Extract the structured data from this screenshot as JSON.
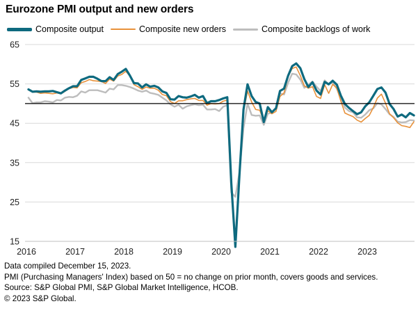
{
  "chart_data": {
    "type": "line",
    "title": "Eurozone PMI output and new orders",
    "xlabel": "",
    "ylabel": "",
    "ylim": [
      15,
      65
    ],
    "yticks": [
      15,
      25,
      35,
      45,
      55,
      65
    ],
    "xlim": [
      2016.0,
      2024.0
    ],
    "xticks": [
      2016,
      2017,
      2018,
      2019,
      2020,
      2021,
      2022,
      2023
    ],
    "reference_line": 50,
    "grid": "horizontal",
    "legend_position": "top",
    "series": [
      {
        "name": "Composite output",
        "color": "#0e6a7f",
        "values": [
          53.6,
          53.0,
          53.1,
          53.0,
          53.1,
          53.1,
          53.2,
          52.9,
          52.6,
          53.3,
          53.9,
          54.4,
          54.4,
          56.0,
          56.4,
          56.8,
          56.8,
          56.3,
          55.7,
          55.7,
          56.7,
          56.0,
          57.5,
          58.1,
          58.8,
          57.1,
          55.2,
          55.1,
          54.1,
          54.9,
          54.3,
          54.5,
          54.1,
          53.1,
          52.7,
          51.1,
          51.0,
          51.9,
          51.6,
          51.5,
          51.8,
          52.2,
          51.5,
          51.9,
          50.1,
          50.6,
          50.6,
          50.9,
          51.3,
          51.6,
          29.7,
          13.6,
          31.9,
          48.5,
          54.9,
          51.9,
          50.4,
          50.0,
          45.3,
          49.1,
          47.8,
          48.8,
          53.2,
          53.8,
          57.1,
          59.5,
          60.2,
          59.0,
          56.2,
          54.2,
          55.4,
          53.3,
          52.3,
          55.5,
          54.9,
          55.8,
          54.8,
          52.0,
          49.9,
          48.9,
          48.1,
          47.3,
          47.8,
          49.3,
          50.3,
          52.0,
          53.7,
          54.1,
          52.8,
          49.9,
          48.6,
          46.7,
          47.2,
          46.5,
          47.6,
          47.0
        ]
      },
      {
        "name": "Composite new orders",
        "color": "#e8913a",
        "values": [
          53.5,
          52.9,
          52.9,
          52.6,
          52.7,
          52.6,
          52.5,
          52.7,
          52.5,
          53.1,
          53.8,
          54.1,
          54.0,
          55.3,
          55.6,
          56.1,
          55.8,
          55.7,
          55.6,
          55.1,
          56.2,
          55.7,
          57.0,
          57.4,
          58.2,
          57.0,
          54.8,
          54.3,
          53.6,
          54.2,
          53.9,
          53.9,
          53.4,
          52.3,
          52.0,
          50.5,
          50.0,
          50.7,
          50.7,
          51.0,
          51.2,
          51.3,
          50.8,
          50.8,
          49.6,
          50.0,
          49.9,
          50.0,
          50.6,
          50.9,
          30.5,
          14.3,
          33.5,
          47.9,
          53.2,
          50.4,
          48.5,
          48.3,
          45.6,
          48.2,
          47.4,
          48.0,
          51.8,
          52.7,
          56.9,
          58.9,
          59.3,
          57.1,
          54.5,
          53.9,
          54.3,
          51.8,
          51.3,
          54.8,
          52.6,
          54.9,
          53.9,
          50.6,
          47.6,
          47.1,
          46.7,
          45.8,
          45.3,
          46.2,
          47.0,
          49.0,
          51.4,
          52.4,
          50.1,
          47.4,
          46.4,
          45.1,
          44.4,
          44.2,
          43.9,
          45.4
        ]
      },
      {
        "name": "Composite backlogs of work",
        "color": "#bdbdbd",
        "values": [
          51.5,
          50.1,
          50.3,
          50.3,
          50.6,
          50.5,
          50.3,
          50.9,
          50.8,
          51.5,
          51.7,
          51.6,
          52.0,
          53.1,
          52.8,
          53.4,
          53.4,
          53.4,
          53.1,
          52.8,
          53.8,
          53.6,
          54.7,
          54.7,
          54.5,
          54.2,
          53.8,
          53.3,
          53.0,
          53.3,
          52.7,
          52.5,
          52.2,
          51.5,
          50.8,
          49.8,
          49.2,
          49.7,
          48.7,
          49.3,
          49.6,
          49.8,
          49.6,
          49.7,
          48.5,
          48.5,
          48.6,
          48.1,
          49.2,
          49.6,
          27.4,
          26.3,
          32.5,
          43.7,
          50.0,
          47.1,
          46.9,
          47.0,
          44.6,
          47.4,
          47.7,
          48.9,
          52.6,
          52.3,
          55.3,
          57.6,
          57.4,
          56.1,
          54.0,
          54.8,
          55.6,
          54.3,
          53.2,
          55.9,
          54.9,
          55.4,
          53.8,
          51.3,
          49.0,
          48.1,
          47.8,
          46.5,
          46.4,
          47.2,
          48.3,
          48.8,
          50.1,
          49.8,
          48.6,
          47.3,
          46.6,
          45.4,
          45.2,
          45.3,
          45.8,
          45.7
        ]
      }
    ]
  },
  "footnotes": [
    "Data compiled December 15, 2023.",
    "PMI (Purchasing Managers' Index) based on 50 = no change on prior month, covers goods and services.",
    "Source: S&P Global PMI, S&P Global Market Intelligence, HCOB.",
    "© 2023 S&P Global."
  ]
}
